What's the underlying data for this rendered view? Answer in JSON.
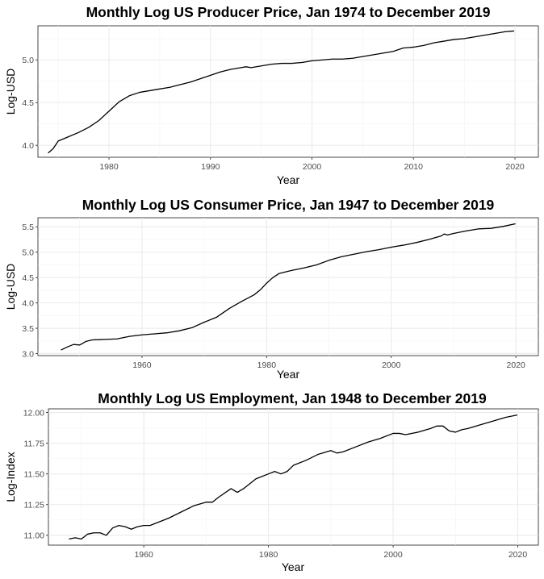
{
  "chart_data": [
    {
      "type": "line",
      "title": "Monthly Log US Producer Price, Jan 1974 to December 2019",
      "xlabel": "Year",
      "ylabel": "Log-USD",
      "xlim": [
        1973.0,
        2022.3
      ],
      "ylim": [
        3.86,
        5.4
      ],
      "xticks": [
        1980,
        1990,
        2000,
        2010,
        2020
      ],
      "xtick_labels": [
        "1980",
        "1990",
        "2000",
        "2010",
        "2020"
      ],
      "yticks": [
        4.0,
        4.5,
        5.0
      ],
      "ytick_labels": [
        "4.0",
        "4.5",
        "5.0"
      ],
      "grid": true,
      "series": [
        {
          "color": "#000000",
          "x": [
            1974.0,
            1974.5,
            1975.0,
            1976.0,
            1977.0,
            1978.0,
            1979.0,
            1980.0,
            1981.0,
            1982.0,
            1983.0,
            1984.0,
            1985.0,
            1986.0,
            1987.0,
            1988.0,
            1989.0,
            1990.0,
            1991.0,
            1992.0,
            1993.0,
            1993.5,
            1994.0,
            1995.0,
            1996.0,
            1997.0,
            1998.0,
            1999.0,
            2000.0,
            2001.0,
            2002.0,
            2003.0,
            2004.0,
            2005.0,
            2006.0,
            2007.0,
            2008.0,
            2009.0,
            2010.0,
            2011.0,
            2012.0,
            2013.0,
            2014.0,
            2015.0,
            2016.0,
            2017.0,
            2018.0,
            2019.0,
            2019.92
          ],
          "y": [
            3.91,
            3.96,
            4.05,
            4.1,
            4.15,
            4.21,
            4.29,
            4.4,
            4.51,
            4.58,
            4.62,
            4.64,
            4.66,
            4.68,
            4.71,
            4.74,
            4.78,
            4.82,
            4.86,
            4.89,
            4.91,
            4.92,
            4.91,
            4.93,
            4.95,
            4.96,
            4.96,
            4.97,
            4.99,
            5.0,
            5.01,
            5.01,
            5.02,
            5.04,
            5.06,
            5.08,
            5.1,
            5.14,
            5.15,
            5.17,
            5.2,
            5.22,
            5.24,
            5.25,
            5.27,
            5.29,
            5.31,
            5.33,
            5.34
          ]
        }
      ]
    },
    {
      "type": "line",
      "title": "Monthly Log US Consumer Price, Jan 1947 to December 2019",
      "xlabel": "Year",
      "ylabel": "Log-USD",
      "xlim": [
        1943.3,
        2023.6
      ],
      "ylim": [
        2.96,
        5.68
      ],
      "xticks": [
        1960,
        1980,
        2000,
        2020
      ],
      "xtick_labels": [
        "1960",
        "1980",
        "2000",
        "2020"
      ],
      "yticks": [
        3.0,
        3.5,
        4.0,
        4.5,
        5.0,
        5.5
      ],
      "ytick_labels": [
        "3.0",
        "3.5",
        "4.0",
        "4.5",
        "5.0",
        "5.5"
      ],
      "grid": true,
      "series": [
        {
          "color": "#000000",
          "x": [
            1947.0,
            1948.0,
            1949.0,
            1950.0,
            1951.0,
            1952.0,
            1954.0,
            1956.0,
            1958.0,
            1960.0,
            1962.0,
            1964.0,
            1966.0,
            1968.0,
            1970.0,
            1972.0,
            1974.0,
            1976.0,
            1978.0,
            1979.0,
            1980.0,
            1981.0,
            1982.0,
            1984.0,
            1986.0,
            1988.0,
            1990.0,
            1992.0,
            1994.0,
            1996.0,
            1998.0,
            2000.0,
            2002.0,
            2004.0,
            2006.0,
            2008.0,
            2008.5,
            2009.0,
            2010.0,
            2012.0,
            2014.0,
            2016.0,
            2018.0,
            2019.92
          ],
          "y": [
            3.07,
            3.13,
            3.18,
            3.17,
            3.24,
            3.27,
            3.28,
            3.29,
            3.34,
            3.37,
            3.39,
            3.41,
            3.45,
            3.51,
            3.62,
            3.72,
            3.89,
            4.03,
            4.16,
            4.26,
            4.39,
            4.5,
            4.58,
            4.64,
            4.69,
            4.75,
            4.84,
            4.91,
            4.96,
            5.01,
            5.05,
            5.1,
            5.14,
            5.19,
            5.25,
            5.32,
            5.36,
            5.34,
            5.37,
            5.42,
            5.46,
            5.47,
            5.51,
            5.56
          ]
        }
      ]
    },
    {
      "type": "line",
      "title": "Monthly Log US Employment, Jan 1948 to December 2019",
      "xlabel": "Year",
      "ylabel": "Log-Index",
      "xlim": [
        1944.7,
        2023.3
      ],
      "ylim": [
        10.92,
        12.03
      ],
      "xticks": [
        1960,
        1980,
        2000,
        2020
      ],
      "xtick_labels": [
        "1960",
        "1980",
        "2000",
        "2020"
      ],
      "yticks": [
        11.0,
        11.25,
        11.5,
        11.75,
        12.0
      ],
      "ytick_labels": [
        "11.00",
        "11.25",
        "11.50",
        "11.75",
        "12.00"
      ],
      "grid": true,
      "series": [
        {
          "color": "#000000",
          "x": [
            1948.0,
            1949.0,
            1950.0,
            1951.0,
            1952.0,
            1953.0,
            1954.0,
            1955.0,
            1956.0,
            1957.0,
            1958.0,
            1959.0,
            1960.0,
            1961.0,
            1962.0,
            1964.0,
            1966.0,
            1968.0,
            1970.0,
            1971.0,
            1972.0,
            1974.0,
            1975.0,
            1976.0,
            1978.0,
            1980.0,
            1981.0,
            1982.0,
            1983.0,
            1984.0,
            1986.0,
            1988.0,
            1990.0,
            1991.0,
            1992.0,
            1994.0,
            1996.0,
            1998.0,
            2000.0,
            2001.0,
            2002.0,
            2004.0,
            2006.0,
            2007.0,
            2008.0,
            2009.0,
            2010.0,
            2011.0,
            2012.0,
            2014.0,
            2016.0,
            2018.0,
            2019.92
          ],
          "y": [
            10.97,
            10.98,
            10.97,
            11.01,
            11.02,
            11.02,
            11.0,
            11.06,
            11.08,
            11.07,
            11.05,
            11.07,
            11.08,
            11.08,
            11.1,
            11.14,
            11.19,
            11.24,
            11.27,
            11.27,
            11.31,
            11.38,
            11.35,
            11.38,
            11.46,
            11.5,
            11.52,
            11.5,
            11.52,
            11.57,
            11.61,
            11.66,
            11.69,
            11.67,
            11.68,
            11.72,
            11.76,
            11.79,
            11.83,
            11.83,
            11.82,
            11.84,
            11.87,
            11.89,
            11.89,
            11.85,
            11.84,
            11.86,
            11.87,
            11.9,
            11.93,
            11.96,
            11.98
          ]
        }
      ]
    }
  ]
}
